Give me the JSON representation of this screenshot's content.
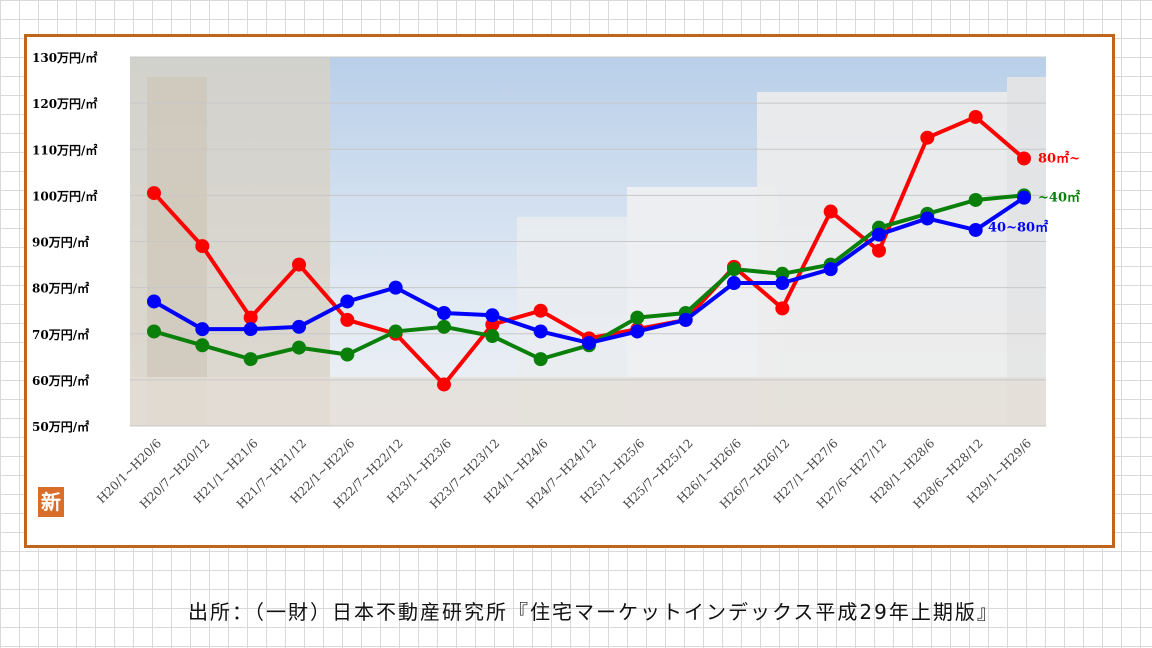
{
  "chart_data": {
    "type": "line",
    "categories": [
      "H20/1~H20/6",
      "H20/7~H20/12",
      "H21/1~H21/6",
      "H21/7~H21/12",
      "H22/1~H22/6",
      "H22/7~H22/12",
      "H23/1~H23/6",
      "H23/7~H23/12",
      "H24/1~H24/6",
      "H24/7~H24/12",
      "H25/1~H25/6",
      "H25/7~H25/12",
      "H26/1~H26/6",
      "H26/7~H26/12",
      "H27/1~H27/6",
      "H27/6~H27/12",
      "H28/1~H28/6",
      "H28/6~H28/12",
      "H29/1~H29/6"
    ],
    "yticks": [
      "50万円/㎡",
      "60万円/㎡",
      "70万円/㎡",
      "80万円/㎡",
      "90万円/㎡",
      "100万円/㎡",
      "110万円/㎡",
      "120万円/㎡",
      "130万円/㎡"
    ],
    "ylim": [
      50,
      130
    ],
    "grid": true,
    "series": [
      {
        "name": "80㎡~",
        "color": "#ff0000",
        "values": [
          100.5,
          89,
          73.5,
          85,
          73,
          70,
          59,
          72,
          75,
          69,
          71,
          73,
          84.5,
          75.5,
          96.5,
          88,
          112.5,
          117,
          108
        ]
      },
      {
        "name": "~40㎡",
        "color": "#0a800a",
        "values": [
          70.5,
          67.5,
          64.5,
          67,
          65.5,
          70.5,
          71.5,
          69.5,
          64.5,
          67.5,
          73.5,
          74.5,
          84,
          83,
          85,
          93,
          96,
          99,
          100
        ]
      },
      {
        "name": "40~80㎡",
        "color": "#0000ff",
        "values": [
          77,
          71,
          71,
          71.5,
          77,
          80,
          74.5,
          74,
          70.5,
          68,
          70.5,
          73,
          81,
          81,
          84,
          91.5,
          95,
          92.5,
          99.5
        ]
      }
    ]
  },
  "source_note": "出所：（一財）日本不動産研究所『住宅マーケットインデックス平成29年上期版』",
  "badge_text": "新"
}
